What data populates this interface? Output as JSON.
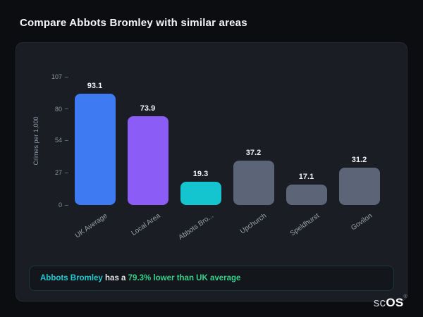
{
  "page": {
    "title": "Compare Abbots Bromley with similar areas"
  },
  "chart_data": {
    "type": "bar",
    "title": "",
    "ylabel": "Crimes per 1,000",
    "ylim": [
      0,
      107
    ],
    "yticks": [
      0,
      27,
      54,
      80,
      107
    ],
    "categories": [
      "UK Average",
      "Local Area",
      "Abbots Bro...",
      "Upchurch",
      "Speldhurst",
      "Govilon"
    ],
    "values": [
      93.1,
      73.9,
      19.3,
      37.2,
      17.1,
      31.2
    ],
    "bar_colors": [
      "#3e7bf2",
      "#8b5cf6",
      "#14c4cf",
      "#5b6577",
      "#5b6577",
      "#5b6577"
    ],
    "grid": false,
    "legend": false
  },
  "note": {
    "area_name": "Abbots Bromley",
    "connector": "has a",
    "stat_text": "79.3% lower than UK average"
  },
  "brand": {
    "prefix": "sc",
    "suffix": "OS",
    "registered": "®"
  },
  "colors": {
    "background": "#0c0d11",
    "card": "#1a1d24",
    "accent_cyan": "#1fc9d2",
    "accent_green": "#35d08a"
  }
}
